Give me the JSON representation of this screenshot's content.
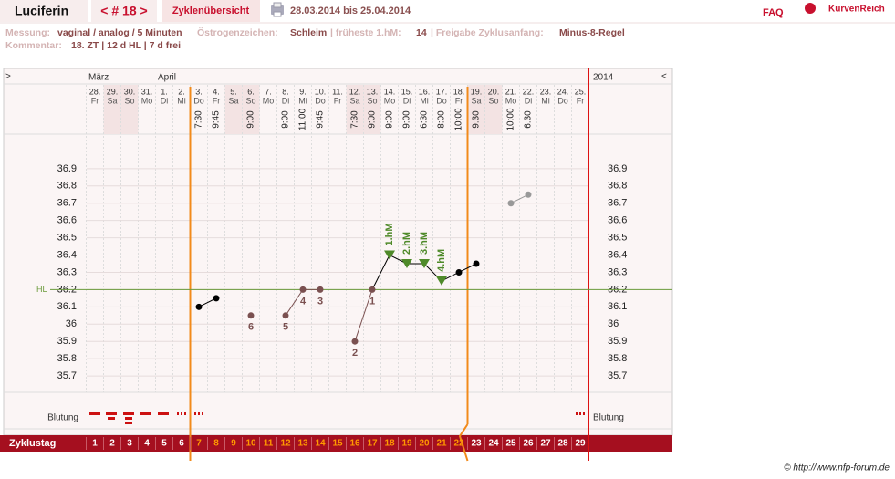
{
  "header": {
    "name": "Luciferin",
    "cycle_nav": "< # 18 >",
    "overview_tab": "Zyklenübersicht",
    "date_range": "28.03.2014 bis 25.04.2014",
    "faq": "FAQ",
    "brand": "KurvenReich"
  },
  "info": {
    "measure_label": "Messung:",
    "measure": "vaginal / analog / 5 Minuten",
    "estrogen_label": "Östrogenzeichen:",
    "estrogen": "Schleim",
    "earliest_label": "| früheste 1.hM:",
    "earliest": "14",
    "release_label": "| Freigabe Zyklusanfang:",
    "release": "Minus-8-Regel",
    "comment_label": "Kommentar:",
    "comment": "18. ZT | 12 d HL | 7 d frei"
  },
  "chart_data": {
    "type": "line",
    "nav_left": ">",
    "nav_right": "<",
    "year": "2014",
    "months": [
      "März",
      "April"
    ],
    "dates": [
      "28.",
      "29.",
      "30.",
      "31.",
      "1.",
      "2.",
      "3.",
      "4.",
      "5.",
      "6.",
      "7.",
      "8.",
      "9.",
      "10.",
      "11.",
      "12.",
      "13.",
      "14.",
      "15.",
      "16.",
      "17.",
      "18.",
      "19.",
      "20.",
      "21.",
      "22.",
      "23.",
      "24.",
      "25."
    ],
    "weekdays": [
      "Fr",
      "Sa",
      "So",
      "Mo",
      "Di",
      "Mi",
      "Do",
      "Fr",
      "Sa",
      "So",
      "Mo",
      "Di",
      "Mi",
      "Do",
      "Fr",
      "Sa",
      "So",
      "Mo",
      "Di",
      "Mi",
      "Do",
      "Fr",
      "Sa",
      "So",
      "Mo",
      "Di",
      "Mi",
      "Do",
      "Fr"
    ],
    "times": [
      null,
      null,
      null,
      null,
      null,
      null,
      "7:30",
      "9:45",
      null,
      "9:00",
      null,
      "9:00",
      "11:00",
      "9:45",
      null,
      "7:30",
      "9:00",
      "9:00",
      "9:00",
      "6:30",
      "8:00",
      "10:00",
      "9:30",
      null,
      "10:00",
      "6:30",
      null,
      null,
      null
    ],
    "values": [
      null,
      null,
      null,
      null,
      null,
      null,
      36.1,
      36.15,
      null,
      36.05,
      null,
      36.05,
      36.2,
      36.2,
      null,
      35.9,
      36.2,
      36.4,
      36.35,
      36.35,
      36.25,
      36.3,
      36.35,
      null,
      36.7,
      36.75,
      null,
      null,
      null
    ],
    "marker_colors": [
      null,
      null,
      null,
      null,
      null,
      null,
      "#000000",
      "#000000",
      null,
      "#7a5050",
      null,
      "#7a5050",
      "#7a5050",
      "#7a5050",
      null,
      "#7a5050",
      "#7a5050",
      "#4f8a2a",
      "#4f8a2a",
      "#4f8a2a",
      "#4f8a2a",
      "#000000",
      "#000000",
      null,
      "#999999",
      "#999999",
      null,
      null,
      null
    ],
    "markers": [
      null,
      null,
      null,
      null,
      null,
      null,
      "circle",
      "circle",
      null,
      "circle",
      null,
      "circle",
      "circle",
      "circle",
      null,
      "circle",
      "circle",
      "triangle",
      "triangle",
      "triangle",
      "triangle",
      "circle",
      "circle",
      null,
      "circle",
      "circle",
      null,
      null,
      null
    ],
    "point_labels": [
      null,
      null,
      null,
      null,
      null,
      null,
      null,
      null,
      null,
      "6",
      null,
      "5",
      "4",
      "3",
      null,
      "2",
      "1",
      "1.hM",
      "2.hM",
      "3.hM",
      "4.hM",
      null,
      null,
      null,
      null,
      null,
      null,
      null,
      null
    ],
    "line_color": "#000000",
    "ylim": [
      35.6,
      37.1
    ],
    "yticks": [
      36.9,
      36.8,
      36.7,
      36.6,
      36.5,
      36.4,
      36.3,
      36.2,
      36.1,
      36,
      35.9,
      35.8,
      35.7
    ],
    "coverline": 36.2,
    "coverline_label": "HL",
    "coverline_color": "#6a9a3a",
    "bleeding_label": "Blutung",
    "cycle_day_label": "Zyklustag",
    "cycle_days": [
      1,
      2,
      3,
      4,
      5,
      6,
      7,
      8,
      9,
      10,
      11,
      12,
      13,
      14,
      15,
      16,
      17,
      18,
      19,
      20,
      21,
      22,
      23,
      24,
      25,
      26,
      27,
      28,
      29
    ],
    "cycle_day_colors": [
      "#fff",
      "#fff",
      "#fff",
      "#fff",
      "#fff",
      "#fff",
      "#ff9900",
      "#ff9900",
      "#ff9900",
      "#ff9900",
      "#ff9900",
      "#ff9900",
      "#ff9900",
      "#ff9900",
      "#ff9900",
      "#ff9900",
      "#ff9900",
      "#ff9900",
      "#ff9900",
      "#ff9900",
      "#ff9900",
      "#ff9900",
      "#fff",
      "#fff",
      "#fff",
      "#fff",
      "#fff",
      "#fff",
      "#fff"
    ]
  },
  "footer": {
    "copyright": "© http://www.nfp-forum.de"
  }
}
